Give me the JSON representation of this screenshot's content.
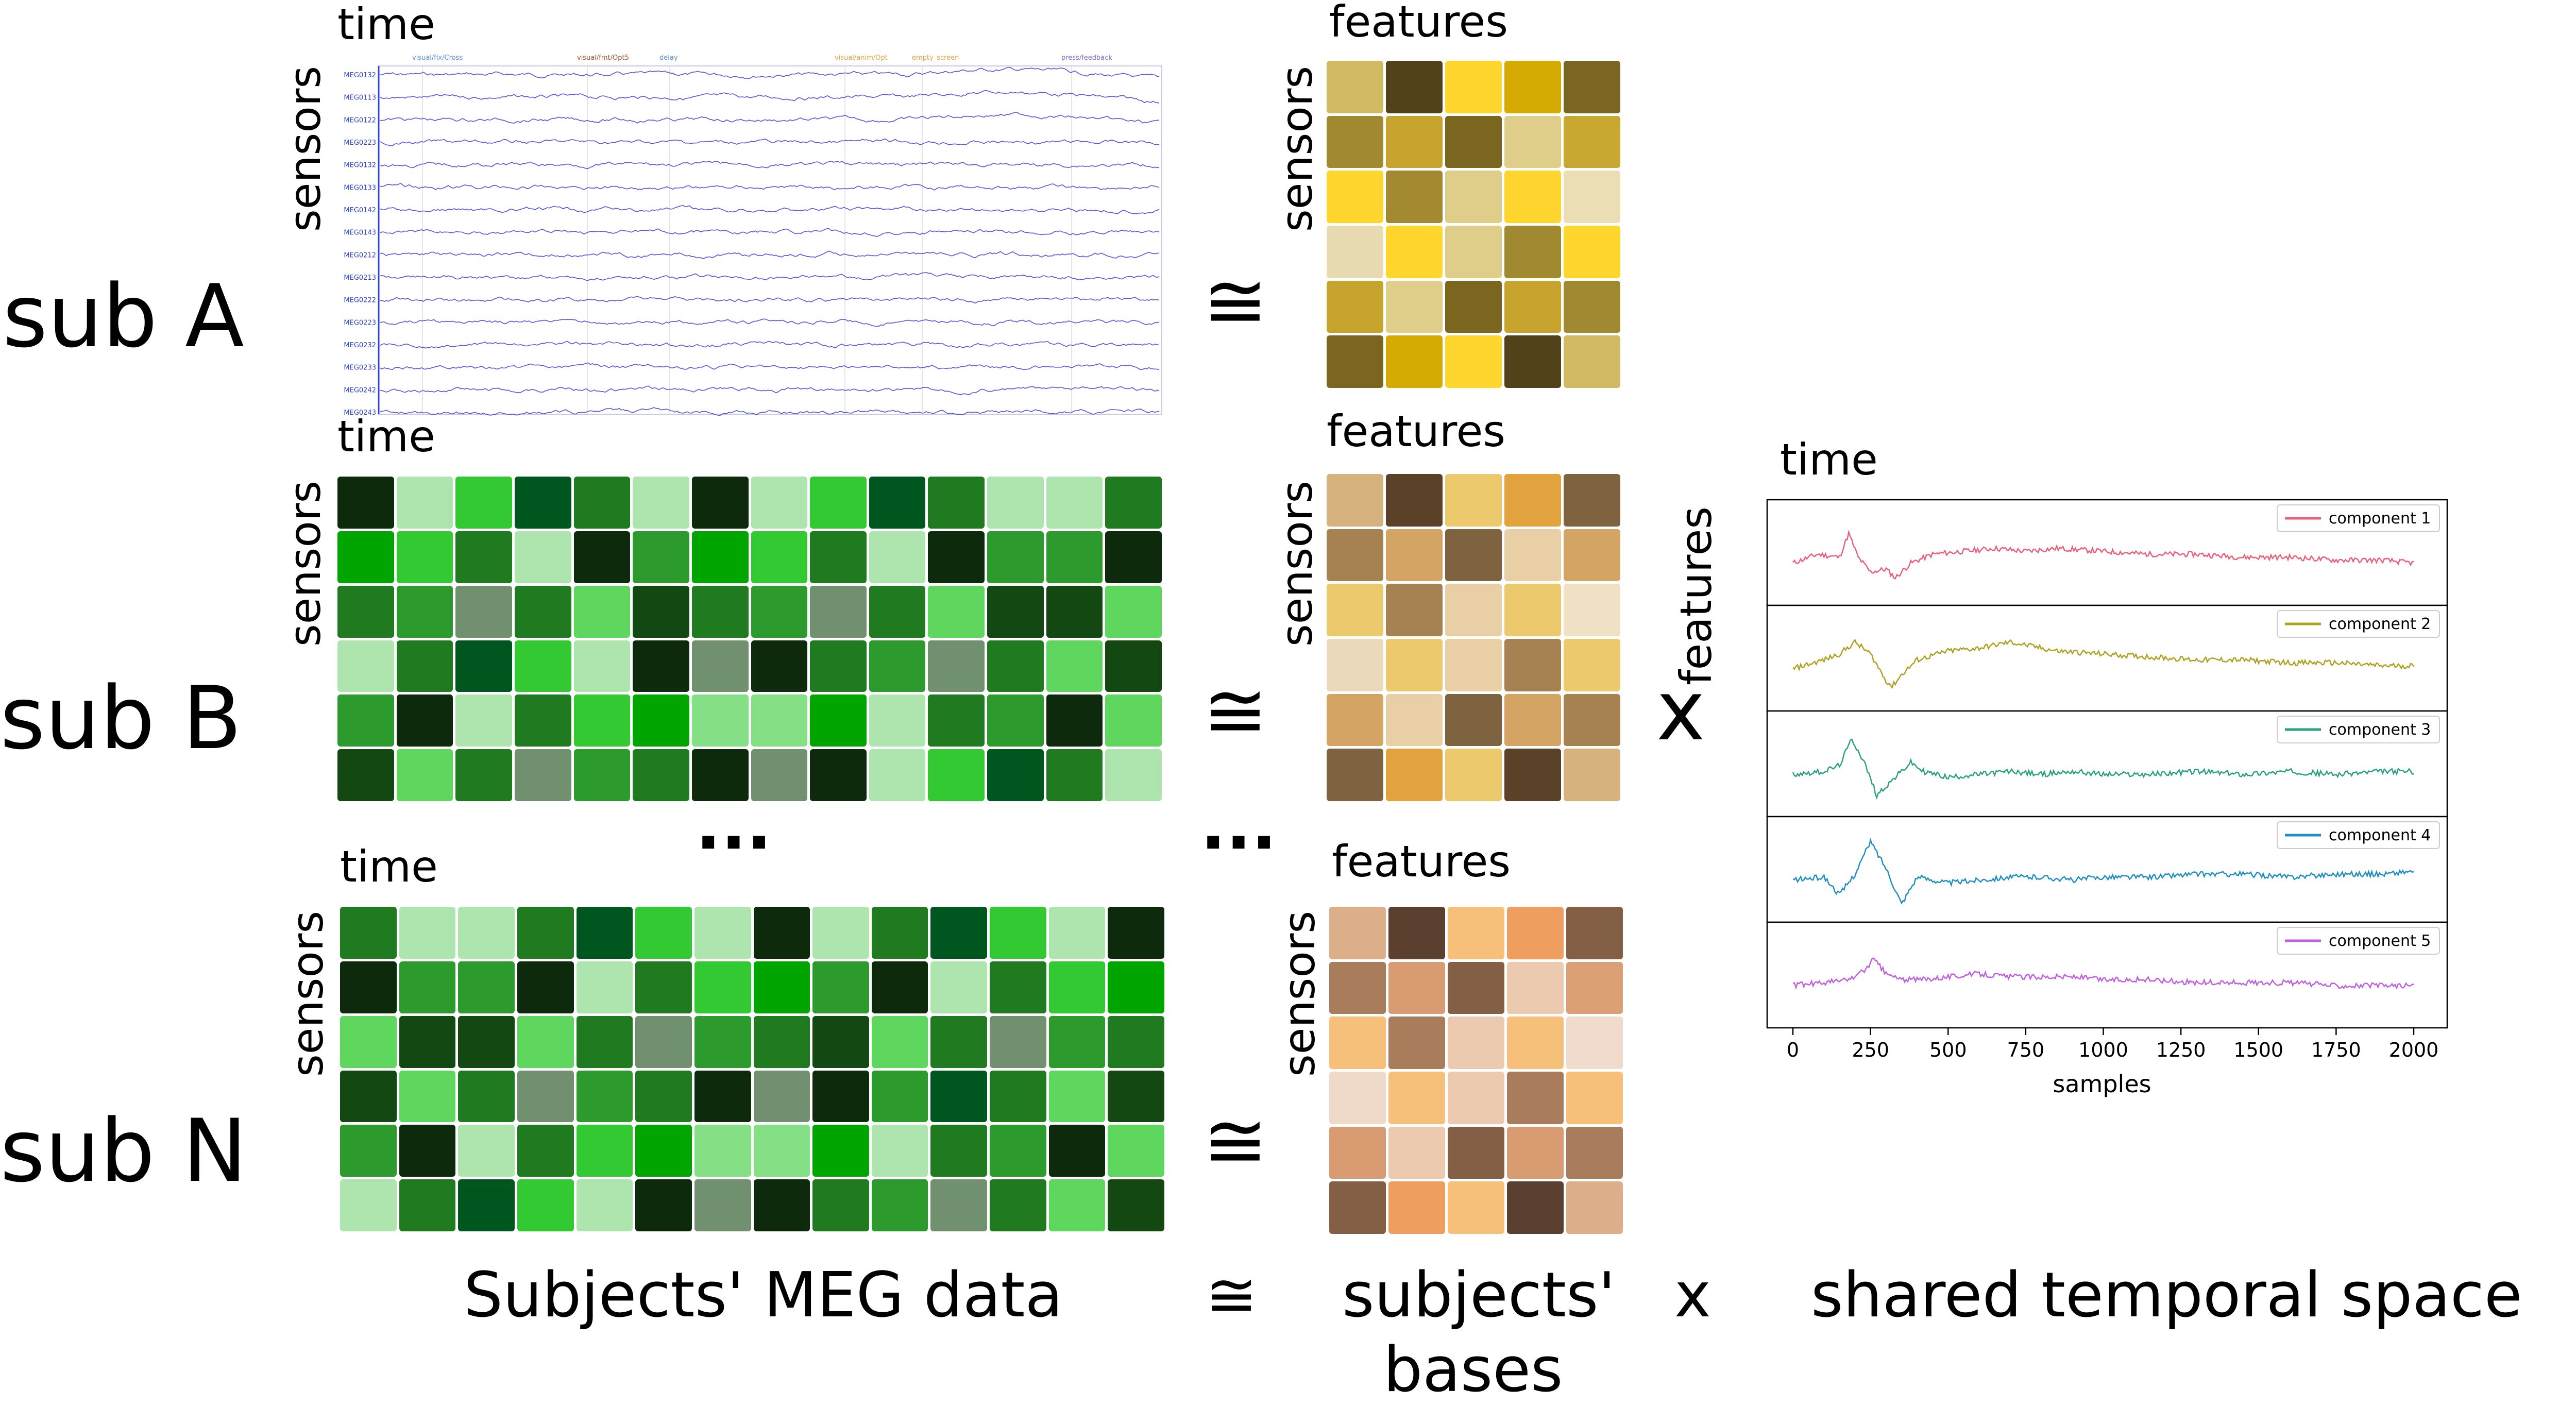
{
  "subjects": [
    {
      "label": "sub A",
      "time_label": "time",
      "sensors_label": "sensors"
    },
    {
      "label": "sub B",
      "time_label": "time",
      "sensors_label": "sensors"
    },
    {
      "label": "sub N",
      "time_label": "time",
      "sensors_label": "sensors"
    }
  ],
  "bases": [
    {
      "features_label": "features",
      "sensors_label": "sensors",
      "colors": [
        "#d2b964",
        "#52421a",
        "#fed62e",
        "#d5aa03",
        "#7a6622",
        "#a08931",
        "#c6a42d",
        "#7b6620",
        "#dfcd8a",
        "#c8a831",
        "#fed62e",
        "#a38a31",
        "#dfcd8a",
        "#fed52e",
        "#ecdeb4",
        "#e8dbb1",
        "#fed62e",
        "#dfcd8a",
        "#a08931",
        "#fed62e",
        "#c6a42d",
        "#dfcd8a",
        "#7b6620",
        "#c6a42d",
        "#a08931",
        "#7b6620",
        "#d5aa03",
        "#fed62e",
        "#52421a",
        "#d2b964"
      ]
    },
    {
      "features_label": "features",
      "sensors_label": "sensors",
      "colors": [
        "#d6b27f",
        "#5a4128",
        "#edc96e",
        "#e2a23e",
        "#7f6240",
        "#a68152",
        "#d4a464",
        "#7f6240",
        "#e8cfa6",
        "#d4a464",
        "#edc96e",
        "#a68152",
        "#e8cfa6",
        "#edc96e",
        "#f0e0c4",
        "#ebd9bc",
        "#edc96e",
        "#e8cfa6",
        "#a68152",
        "#edc96e",
        "#d4a464",
        "#e8cfa6",
        "#7f6240",
        "#d4a464",
        "#a68152",
        "#7f6240",
        "#e2a23e",
        "#edc96e",
        "#5a4128",
        "#d6b27f"
      ]
    },
    {
      "features_label": "features",
      "sensors_label": "sensors",
      "colors": [
        "#dcaf8a",
        "#5b4030",
        "#f7c07a",
        "#ef9e5f",
        "#835f46",
        "#a97c5c",
        "#d99c72",
        "#835f46",
        "#ebcab0",
        "#dba076",
        "#f7c07a",
        "#a97c5c",
        "#ebcab0",
        "#f7c07a",
        "#f1dbcc",
        "#efd9c9",
        "#f7c07a",
        "#ebcab0",
        "#a97c5c",
        "#f7c07a",
        "#d99c72",
        "#ebcab0",
        "#835f46",
        "#d99c72",
        "#a97c5c",
        "#835f46",
        "#ef9e5f",
        "#f7c07a",
        "#5b4030",
        "#dcaf8a"
      ]
    }
  ],
  "green_b": [
    "#0d2a0d",
    "#aee5ae",
    "#33c933",
    "#00561f",
    "#207a20",
    "#aee5ae",
    "#0d2a0d",
    "#aee5ae",
    "#33c933",
    "#00561f",
    "#207a20",
    "#aee5ae",
    "#aee5ae",
    "#207a20",
    "#00a500",
    "#33c933",
    "#207a20",
    "#aee5ae",
    "#0d2a0d",
    "#2d9a2d",
    "#00a500",
    "#33c933",
    "#207a20",
    "#aee5ae",
    "#0d2a0d",
    "#2d9a2d",
    "#2d9a2d",
    "#0d2a0d",
    "#207a20",
    "#2d9a2d",
    "#709070",
    "#207a20",
    "#5fd75f",
    "#134813",
    "#207a20",
    "#2d9a2d",
    "#709070",
    "#207a20",
    "#5fd75f",
    "#134813",
    "#134813",
    "#5fd75f",
    "#aee5ae",
    "#207a20",
    "#00561f",
    "#33c933",
    "#aee5ae",
    "#0d2a0d",
    "#709070",
    "#0d2a0d",
    "#207a20",
    "#2d9a2d",
    "#709070",
    "#207a20",
    "#5fd75f",
    "#134813",
    "#2d9a2d",
    "#0d2a0d",
    "#aee5ae",
    "#207a20",
    "#33c933",
    "#00a500",
    "#85df85",
    "#85df85",
    "#00a500",
    "#aee5ae",
    "#207a20",
    "#2d9a2d",
    "#0d2a0d",
    "#5fd75f",
    "#134813",
    "#5fd75f",
    "#207a20",
    "#709070",
    "#2d9a2d",
    "#207a20",
    "#0d2a0d",
    "#709070",
    "#0d2a0d",
    "#aee5ae",
    "#33c933",
    "#00561f",
    "#207a20",
    "#aee5ae"
  ],
  "green_n": [
    "#207a20",
    "#aee5ae",
    "#aee5ae",
    "#207a20",
    "#00561f",
    "#33c933",
    "#aee5ae",
    "#0d2a0d",
    "#aee5ae",
    "#207a20",
    "#00561f",
    "#33c933",
    "#aee5ae",
    "#0d2a0d",
    "#0d2a0d",
    "#2d9a2d",
    "#2d9a2d",
    "#0d2a0d",
    "#aee5ae",
    "#207a20",
    "#33c933",
    "#00a500",
    "#2d9a2d",
    "#0d2a0d",
    "#aee5ae",
    "#207a20",
    "#33c933",
    "#00a500",
    "#5fd75f",
    "#134813",
    "#134813",
    "#5fd75f",
    "#207a20",
    "#709070",
    "#2d9a2d",
    "#207a20",
    "#134813",
    "#5fd75f",
    "#207a20",
    "#709070",
    "#2d9a2d",
    "#207a20",
    "#134813",
    "#5fd75f",
    "#207a20",
    "#709070",
    "#2d9a2d",
    "#207a20",
    "#0d2a0d",
    "#709070",
    "#0d2a0d",
    "#2d9a2d",
    "#00561f",
    "#207a20",
    "#5fd75f",
    "#134813",
    "#2d9a2d",
    "#0d2a0d",
    "#aee5ae",
    "#207a20",
    "#33c933",
    "#00a500",
    "#85df85",
    "#85df85",
    "#00a500",
    "#aee5ae",
    "#207a20",
    "#2d9a2d",
    "#0d2a0d",
    "#5fd75f",
    "#aee5ae",
    "#207a20",
    "#00561f",
    "#33c933",
    "#aee5ae",
    "#0d2a0d",
    "#709070",
    "#0d2a0d",
    "#207a20",
    "#2d9a2d",
    "#709070",
    "#207a20",
    "#5fd75f",
    "#134813"
  ],
  "meg": {
    "channels": [
      "MEG0132",
      "MEG0113",
      "MEG0122",
      "MEG0223",
      "MEG0132",
      "MEG0133",
      "MEG0142",
      "MEG0143",
      "MEG0212",
      "MEG0213",
      "MEG0222",
      "MEG0223",
      "MEG0232",
      "MEG0233",
      "MEG0242",
      "MEG0243"
    ],
    "events": [
      {
        "label": "visual/fix/Cross",
        "color": "#5b8bd6"
      },
      {
        "label": "visual/fmt/Opt5",
        "color": "#a0522d"
      },
      {
        "label": "delay",
        "color": "#5b8bd6"
      },
      {
        "label": "visual/anim/Opt",
        "color": "#e8a33d"
      },
      {
        "label": "empty_screen",
        "color": "#e8a33d"
      },
      {
        "label": "press/feedback",
        "color": "#8a6bd0"
      }
    ]
  },
  "ops": {
    "approx": "≅",
    "times": "x",
    "dots": "···"
  },
  "shared": {
    "time_label": "time",
    "features_label": "features"
  },
  "bottom": {
    "left": "Subjects' MEG data",
    "approx": "≅",
    "bases_line1": "subjects'",
    "bases_line2": "bases",
    "times": "x",
    "right": "shared temporal space"
  },
  "chart_data": {
    "type": "line",
    "xlabel": "samples",
    "xlim": [
      0,
      2000
    ],
    "x_ticks": [
      0,
      250,
      500,
      750,
      1000,
      1250,
      1500,
      1750,
      2000
    ],
    "series": [
      {
        "name": "component 1",
        "color": "#e8607a",
        "x": [
          0,
          80,
          150,
          180,
          210,
          250,
          300,
          330,
          380,
          450,
          550,
          650,
          750,
          850,
          1000,
          1150,
          1300,
          1450,
          1600,
          1750,
          1900,
          2000
        ],
        "y": [
          0.0,
          0.3,
          0.2,
          1.0,
          0.2,
          -0.3,
          -0.2,
          -0.5,
          0.0,
          0.3,
          0.4,
          0.5,
          0.4,
          0.5,
          0.4,
          0.3,
          0.3,
          0.2,
          0.2,
          0.1,
          0.1,
          0.0
        ]
      },
      {
        "name": "component 2",
        "color": "#b0a020",
        "x": [
          0,
          100,
          150,
          200,
          250,
          300,
          320,
          350,
          400,
          500,
          600,
          700,
          750,
          850,
          1000,
          1150,
          1300,
          1450,
          1600,
          1750,
          1900,
          2000
        ],
        "y": [
          0.0,
          0.3,
          0.5,
          0.9,
          0.5,
          -0.4,
          -0.6,
          -0.2,
          0.3,
          0.6,
          0.7,
          0.9,
          0.8,
          0.6,
          0.5,
          0.4,
          0.3,
          0.3,
          0.2,
          0.2,
          0.1,
          0.1
        ]
      },
      {
        "name": "component 3",
        "color": "#2aa080",
        "x": [
          0,
          100,
          150,
          190,
          230,
          270,
          320,
          380,
          420,
          500,
          600,
          700,
          800,
          900,
          1000,
          1150,
          1300,
          1450,
          1600,
          1750,
          1900,
          2000
        ],
        "y": [
          0.0,
          0.1,
          0.3,
          1.2,
          0.4,
          -0.7,
          -0.2,
          0.4,
          0.1,
          -0.1,
          0.0,
          0.1,
          0.0,
          0.1,
          0.0,
          0.0,
          0.1,
          0.0,
          0.1,
          0.0,
          0.1,
          0.1
        ]
      },
      {
        "name": "component 4",
        "color": "#2090c0",
        "x": [
          0,
          100,
          150,
          200,
          250,
          300,
          350,
          400,
          450,
          500,
          600,
          700,
          800,
          900,
          1000,
          1150,
          1300,
          1450,
          1600,
          1750,
          1900,
          2000
        ],
        "y": [
          0.0,
          0.1,
          -0.5,
          0.2,
          1.3,
          0.4,
          -0.8,
          0.1,
          0.0,
          -0.1,
          0.0,
          0.1,
          0.1,
          0.0,
          0.1,
          0.1,
          0.2,
          0.2,
          0.1,
          0.2,
          0.2,
          0.3
        ]
      },
      {
        "name": "component 5",
        "color": "#c060e0",
        "x": [
          0,
          100,
          180,
          230,
          260,
          300,
          350,
          400,
          500,
          600,
          700,
          800,
          900,
          1000,
          1150,
          1300,
          1450,
          1600,
          1750,
          1900,
          2000
        ],
        "y": [
          0.0,
          0.1,
          0.2,
          0.5,
          0.9,
          0.4,
          0.2,
          0.2,
          0.3,
          0.4,
          0.3,
          0.3,
          0.3,
          0.2,
          0.2,
          0.1,
          0.1,
          0.1,
          0.0,
          0.0,
          0.0
        ]
      }
    ]
  }
}
